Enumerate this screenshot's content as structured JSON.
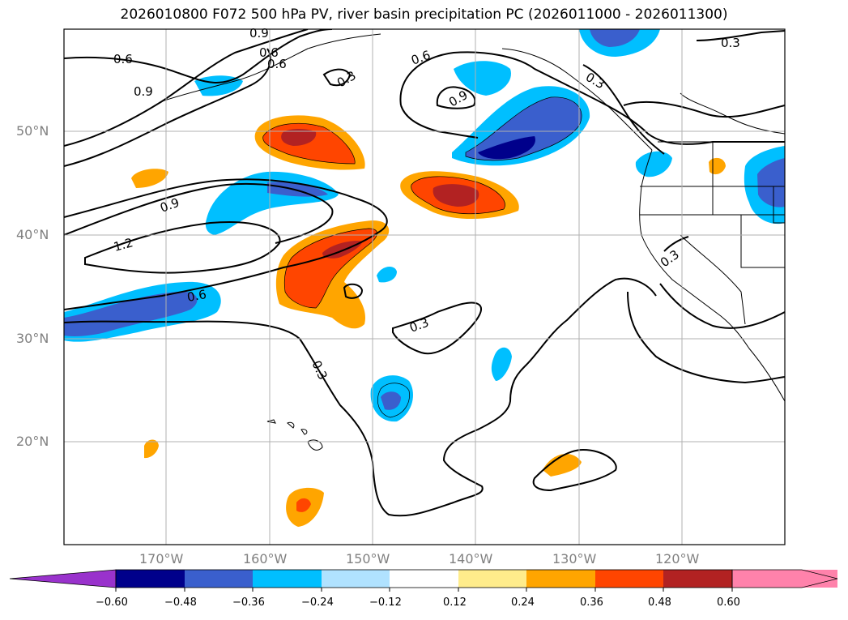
{
  "title": "2026010800 F072 500 hPa PV, river basin precipitation PC (2026011000 - 2026011300)",
  "lat_labels": [
    "50°N",
    "40°N",
    "30°N",
    "20°N"
  ],
  "lon_labels": [
    "170°W",
    "160°W",
    "150°W",
    "140°W",
    "130°W",
    "120°W"
  ],
  "contour_labels": [
    "0.6",
    "0.9",
    "0.6",
    "0.9",
    "0.6",
    "0.3",
    "0.3",
    "0.9",
    "0.6",
    "0.9",
    "1.2",
    "0.6",
    "0.3",
    "0.3",
    "0.3",
    "0.3"
  ],
  "colorbar": {
    "ticks": [
      "−0.60",
      "−0.48",
      "−0.36",
      "−0.24",
      "−0.12",
      "0.12",
      "0.24",
      "0.36",
      "0.48",
      "0.60"
    ],
    "colors": [
      "#9932cc",
      "#00008b",
      "#3a5fcd",
      "#00bfff",
      "#b0e2ff",
      "#ffffff",
      "#ffec8b",
      "#ffa500",
      "#ff4500",
      "#b22222",
      "#ff82ab"
    ]
  }
}
